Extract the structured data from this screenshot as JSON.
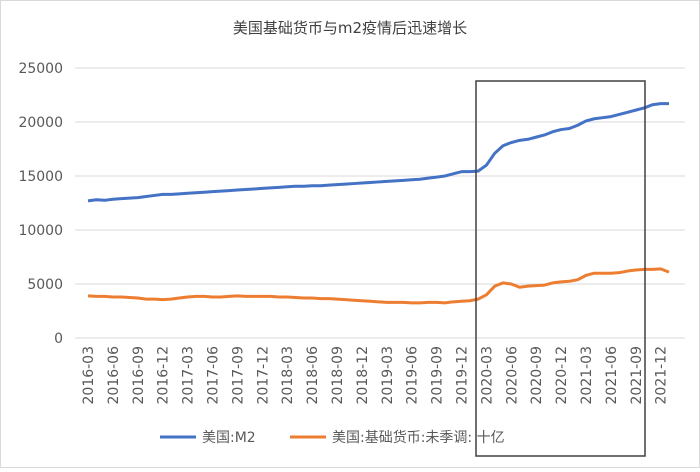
{
  "chart_data": {
    "type": "line",
    "title": "美国基础货币与m2疫情后迅速增长",
    "categories": [
      "2016-03",
      null,
      null,
      "2016-06",
      null,
      null,
      "2016-09",
      null,
      null,
      "2016-12",
      null,
      null,
      "2017-03",
      null,
      null,
      "2017-06",
      null,
      null,
      "2017-09",
      null,
      null,
      "2017-12",
      null,
      null,
      "2018-03",
      null,
      null,
      "2018-06",
      null,
      null,
      "2018-09",
      null,
      null,
      "2018-12",
      null,
      null,
      "2019-03",
      null,
      null,
      "2019-06",
      null,
      null,
      "2019-09",
      null,
      null,
      "2019-12",
      null,
      null,
      "2020-03",
      null,
      null,
      "2020-06",
      null,
      null,
      "2020-09",
      null,
      null,
      "2020-12",
      null,
      null,
      "2021-03",
      null,
      null,
      "2021-06",
      null,
      null,
      "2021-09",
      null,
      null,
      "2021-12",
      null
    ],
    "series": [
      {
        "name": "美国:M2",
        "color": "#4472c4",
        "values": [
          12700,
          12800,
          12750,
          12850,
          12900,
          12950,
          13000,
          13100,
          13200,
          13300,
          13300,
          13350,
          13400,
          13450,
          13500,
          13550,
          13600,
          13650,
          13700,
          13750,
          13800,
          13850,
          13900,
          13950,
          14000,
          14050,
          14050,
          14100,
          14100,
          14150,
          14200,
          14250,
          14300,
          14350,
          14400,
          14450,
          14500,
          14550,
          14600,
          14650,
          14700,
          14800,
          14900,
          15000,
          15200,
          15400,
          15400,
          15450,
          16000,
          17100,
          17800,
          18100,
          18300,
          18400,
          18600,
          18800,
          19100,
          19300,
          19400,
          19700,
          20100,
          20300,
          20400,
          20500,
          20700,
          20900,
          21100,
          21300,
          21600,
          21700,
          21700
        ]
      },
      {
        "name": "美国:基础货币:未季调: 十亿",
        "color": "#ed7d31",
        "values": [
          3900,
          3850,
          3850,
          3800,
          3800,
          3750,
          3700,
          3600,
          3600,
          3550,
          3600,
          3700,
          3800,
          3850,
          3850,
          3800,
          3800,
          3850,
          3900,
          3850,
          3850,
          3850,
          3850,
          3800,
          3800,
          3750,
          3700,
          3700,
          3650,
          3650,
          3600,
          3550,
          3500,
          3450,
          3400,
          3350,
          3300,
          3300,
          3300,
          3250,
          3250,
          3300,
          3300,
          3250,
          3350,
          3400,
          3450,
          3600,
          4000,
          4800,
          5100,
          5000,
          4700,
          4800,
          4850,
          4900,
          5100,
          5200,
          5250,
          5400,
          5800,
          6000,
          6000,
          6000,
          6050,
          6200,
          6300,
          6350,
          6350,
          6400,
          6100
        ]
      }
    ],
    "ylim": [
      0,
      25000
    ],
    "yticks": [
      0,
      5000,
      10000,
      15000,
      20000,
      25000
    ],
    "grid": true
  }
}
